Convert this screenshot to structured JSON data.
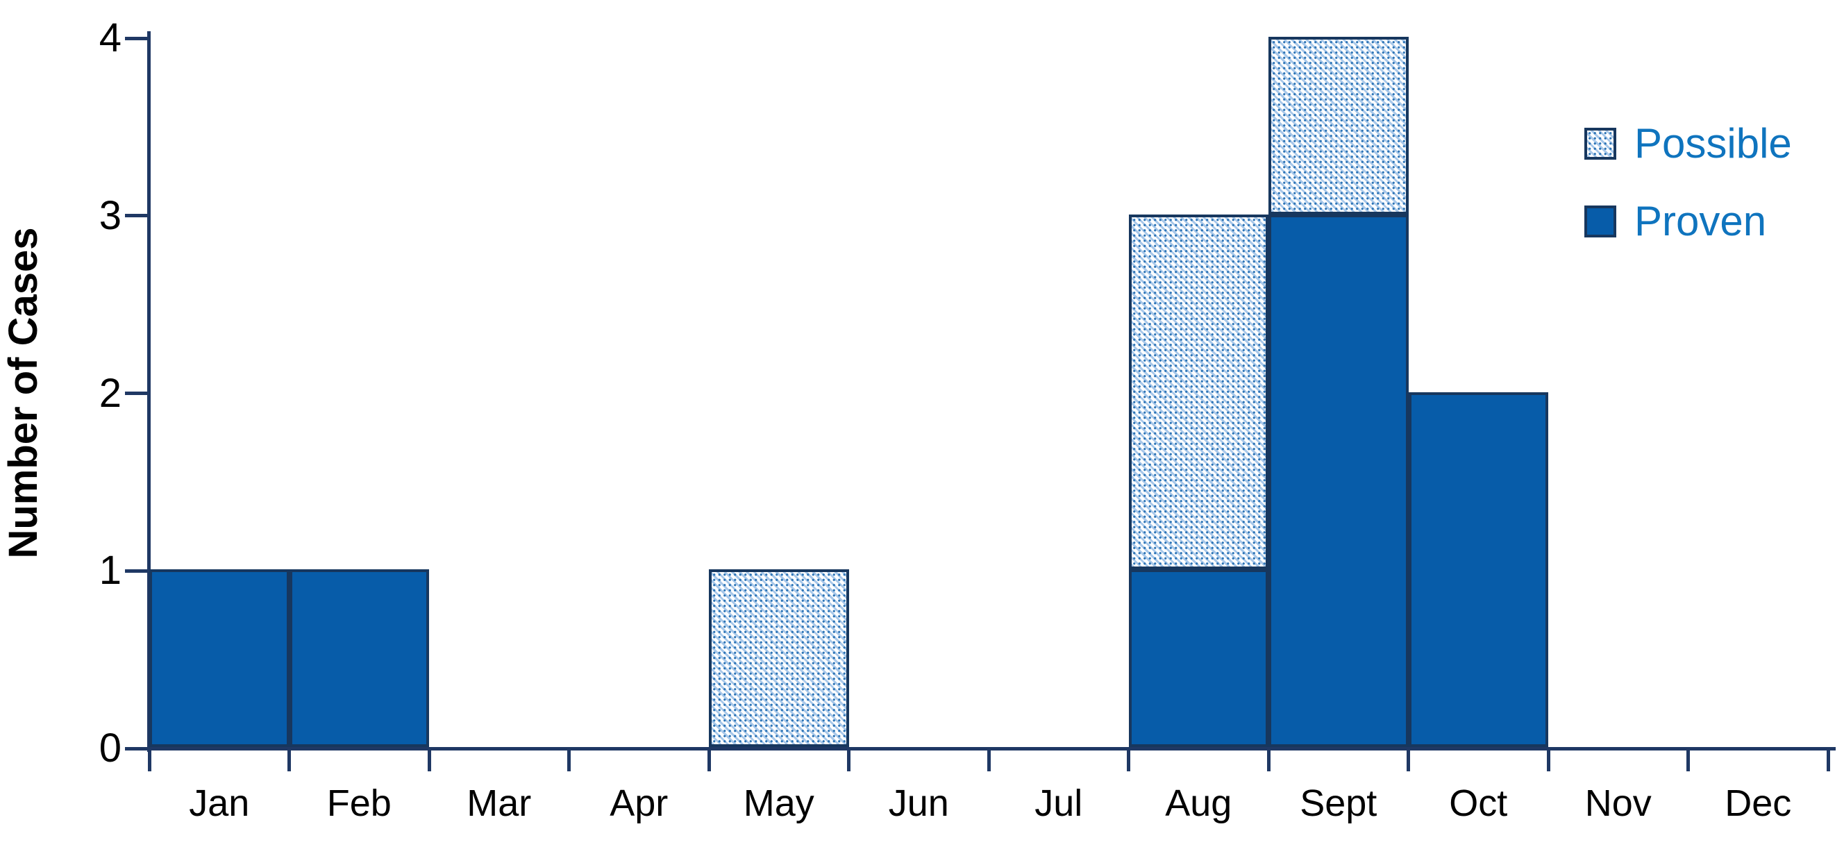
{
  "chart_data": {
    "type": "bar",
    "stacked": true,
    "title": "",
    "xlabel": "",
    "ylabel": "Number of Cases",
    "ylim": [
      0,
      4
    ],
    "yticks": [
      0,
      1,
      2,
      3,
      4
    ],
    "grid": false,
    "legend_position": "top-right",
    "categories": [
      "Jan",
      "Feb",
      "Mar",
      "Apr",
      "May",
      "Jun",
      "Jul",
      "Aug",
      "Sept",
      "Oct",
      "Nov",
      "Dec"
    ],
    "series": [
      {
        "name": "Proven",
        "style": "solid",
        "values": [
          1,
          1,
          0,
          0,
          0,
          0,
          0,
          1,
          3,
          2,
          0,
          0
        ]
      },
      {
        "name": "Possible",
        "style": "hatched",
        "values": [
          0,
          0,
          0,
          0,
          1,
          0,
          0,
          2,
          1,
          0,
          0,
          0
        ]
      }
    ]
  },
  "legend": {
    "items": [
      {
        "label": "Possible",
        "swatch": "hatched"
      },
      {
        "label": "Proven",
        "swatch": "solid"
      }
    ]
  },
  "colors": {
    "solid_fill": "#075CA9",
    "bar_border": "#17375E",
    "axis": "#1F3864",
    "hatch_stripe": "#A8C8EA",
    "hatch_dot": "#2E75B6",
    "legend_text": "#0F74BE",
    "tick_label_text": "#000000"
  }
}
